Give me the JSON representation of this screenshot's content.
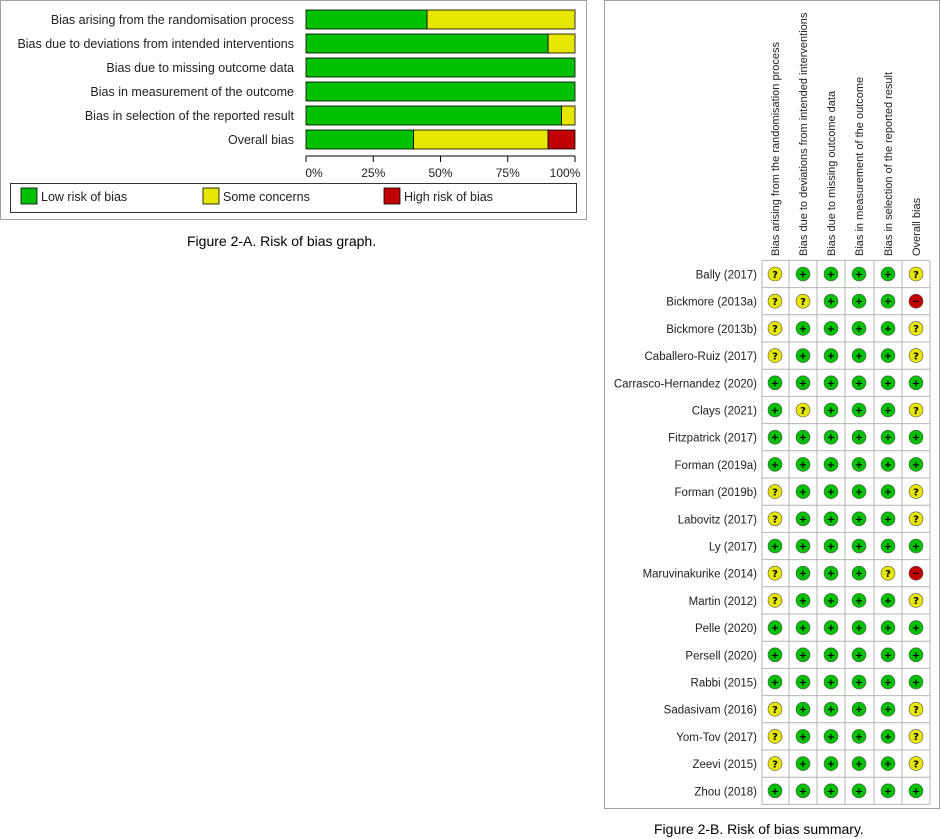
{
  "colors": {
    "low": "#00c000",
    "some": "#e6e600",
    "high": "#c00000",
    "frame": "#a0a0a0",
    "grid": "#b4b4b4"
  },
  "captions": {
    "graph": "Figure 2-A. Risk of bias graph.",
    "summary": "Figure 2-B. Risk of bias summary."
  },
  "chart_data": [
    {
      "type": "bar",
      "stacked": true,
      "orientation": "horizontal",
      "title": "",
      "categories": [
        "Bias arising from the randomisation process",
        "Bias due to deviations from intended interventions",
        "Bias due to missing outcome data",
        "Bias in measurement of the outcome",
        "Bias in selection of the reported result",
        "Overall bias"
      ],
      "series": [
        {
          "name": "Low risk of bias",
          "color_key": "low",
          "values": [
            45,
            90,
            100,
            100,
            95,
            40
          ]
        },
        {
          "name": "Some concerns",
          "color_key": "some",
          "values": [
            55,
            10,
            0,
            0,
            5,
            50
          ]
        },
        {
          "name": "High risk of bias",
          "color_key": "high",
          "values": [
            0,
            0,
            0,
            0,
            0,
            10
          ]
        }
      ],
      "xticks": [
        "0%",
        "25%",
        "50%",
        "75%",
        "100%"
      ],
      "xlim": [
        0,
        100
      ],
      "legend_position": "bottom"
    },
    {
      "type": "table",
      "title": "",
      "domains": [
        "Bias arising from the randomisation process",
        "Bias due to deviations from intended interventions",
        "Bias due to missing outcome data",
        "Bias in measurement of the outcome",
        "Bias in selection of the reported result",
        "Overall bias"
      ],
      "symbols": {
        "low": "+",
        "some": "?",
        "high": "−"
      },
      "studies": [
        {
          "name": "Bally (2017)",
          "ratings": [
            "some",
            "low",
            "low",
            "low",
            "low",
            "some"
          ]
        },
        {
          "name": "Bickmore (2013a)",
          "ratings": [
            "some",
            "some",
            "low",
            "low",
            "low",
            "high"
          ]
        },
        {
          "name": "Bickmore (2013b)",
          "ratings": [
            "some",
            "low",
            "low",
            "low",
            "low",
            "some"
          ]
        },
        {
          "name": "Caballero-Ruiz (2017)",
          "ratings": [
            "some",
            "low",
            "low",
            "low",
            "low",
            "some"
          ]
        },
        {
          "name": "Carrasco-Hernandez (2020)",
          "ratings": [
            "low",
            "low",
            "low",
            "low",
            "low",
            "low"
          ]
        },
        {
          "name": "Clays (2021)",
          "ratings": [
            "low",
            "some",
            "low",
            "low",
            "low",
            "some"
          ]
        },
        {
          "name": "Fitzpatrick (2017)",
          "ratings": [
            "low",
            "low",
            "low",
            "low",
            "low",
            "low"
          ]
        },
        {
          "name": "Forman (2019a)",
          "ratings": [
            "low",
            "low",
            "low",
            "low",
            "low",
            "low"
          ]
        },
        {
          "name": "Forman (2019b)",
          "ratings": [
            "some",
            "low",
            "low",
            "low",
            "low",
            "some"
          ]
        },
        {
          "name": "Labovitz (2017)",
          "ratings": [
            "some",
            "low",
            "low",
            "low",
            "low",
            "some"
          ]
        },
        {
          "name": "Ly (2017)",
          "ratings": [
            "low",
            "low",
            "low",
            "low",
            "low",
            "low"
          ]
        },
        {
          "name": "Maruvinakurike (2014)",
          "ratings": [
            "some",
            "low",
            "low",
            "low",
            "some",
            "high"
          ]
        },
        {
          "name": "Martin (2012)",
          "ratings": [
            "some",
            "low",
            "low",
            "low",
            "low",
            "some"
          ]
        },
        {
          "name": "Pelle (2020)",
          "ratings": [
            "low",
            "low",
            "low",
            "low",
            "low",
            "low"
          ]
        },
        {
          "name": "Persell (2020)",
          "ratings": [
            "low",
            "low",
            "low",
            "low",
            "low",
            "low"
          ]
        },
        {
          "name": "Rabbi (2015)",
          "ratings": [
            "low",
            "low",
            "low",
            "low",
            "low",
            "low"
          ]
        },
        {
          "name": "Sadasivam (2016)",
          "ratings": [
            "some",
            "low",
            "low",
            "low",
            "low",
            "some"
          ]
        },
        {
          "name": "Yom-Tov (2017)",
          "ratings": [
            "some",
            "low",
            "low",
            "low",
            "low",
            "some"
          ]
        },
        {
          "name": "Zeevi (2015)",
          "ratings": [
            "some",
            "low",
            "low",
            "low",
            "low",
            "some"
          ]
        },
        {
          "name": "Zhou (2018)",
          "ratings": [
            "low",
            "low",
            "low",
            "low",
            "low",
            "low"
          ]
        }
      ]
    }
  ]
}
